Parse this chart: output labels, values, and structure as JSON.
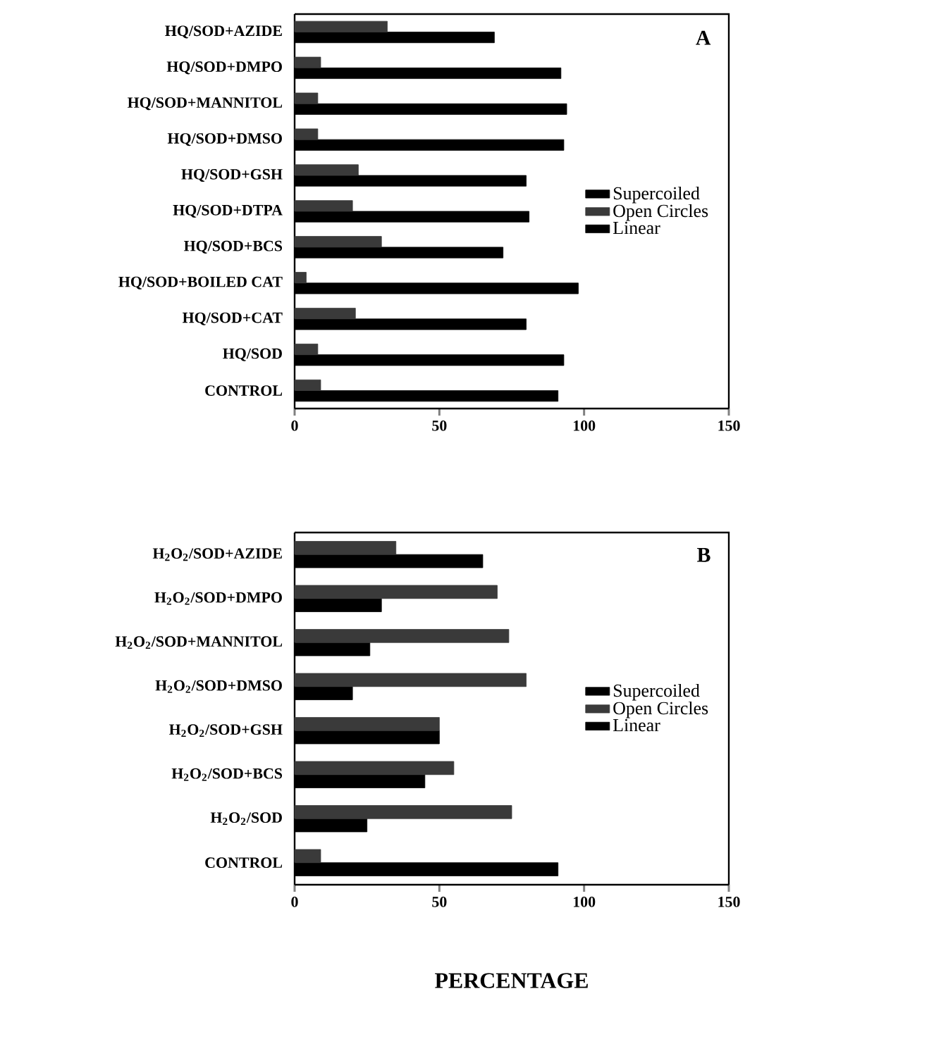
{
  "chart_data": [
    {
      "type": "bar",
      "orientation": "horizontal",
      "annotations": [
        "A"
      ],
      "legend": "right",
      "categories": [
        "HQ/SOD+AZIDE",
        "HQ/SOD+DMPO",
        "HQ/SOD+MANNITOL",
        "HQ/SOD+DMSO",
        "HQ/SOD+GSH",
        "HQ/SOD+DTPA",
        "HQ/SOD+BCS",
        "HQ/SOD+BOILED CAT",
        "HQ/SOD+CAT",
        "HQ/SOD",
        "CONTROL"
      ],
      "series": [
        {
          "name": "Supercoiled",
          "color": "#000000",
          "values": [
            69,
            92,
            94,
            93,
            80,
            81,
            72,
            98,
            80,
            93,
            91
          ]
        },
        {
          "name": "Open Circles",
          "color": "#3a3a3a",
          "values": [
            32,
            9,
            8,
            8,
            22,
            20,
            30,
            4,
            21,
            8,
            9
          ]
        },
        {
          "name": "Linear",
          "color": "#000000",
          "values": [
            0,
            0,
            0,
            0,
            0,
            0,
            0,
            0,
            0,
            0,
            0
          ]
        }
      ],
      "xlim": [
        0,
        150
      ],
      "xticks": [
        0,
        50,
        100,
        150
      ]
    },
    {
      "type": "bar",
      "orientation": "horizontal",
      "annotations": [
        "B"
      ],
      "legend": "right",
      "xlabel": "PERCENTAGE",
      "categories": [
        "H$_{2}$O$_{2}$/SOD+AZIDE",
        "H$_{2}$O$_{2}$/SOD+DMPO",
        "H$_{2}$O$_{2}$/SOD+MANNITOL",
        "H$_{2}$O$_{2}$/SOD+DMSO",
        "H$_{2}$O$_{2}$/SOD+GSH",
        "H$_{2}$O$_{2}$/SOD+BCS",
        "H$_{2}$O$_{2}$/SOD",
        "CONTROL"
      ],
      "series": [
        {
          "name": "Supercoiled",
          "color": "#000000",
          "values": [
            65,
            30,
            26,
            20,
            50,
            45,
            25,
            91
          ]
        },
        {
          "name": "Open Circles",
          "color": "#3a3a3a",
          "values": [
            35,
            70,
            74,
            80,
            50,
            55,
            75,
            9
          ]
        },
        {
          "name": "Linear",
          "color": "#000000",
          "values": [
            0,
            0,
            0,
            0,
            0,
            0,
            0,
            0
          ]
        }
      ],
      "xlim": [
        0,
        150
      ],
      "xticks": [
        0,
        50,
        100,
        150
      ]
    }
  ]
}
